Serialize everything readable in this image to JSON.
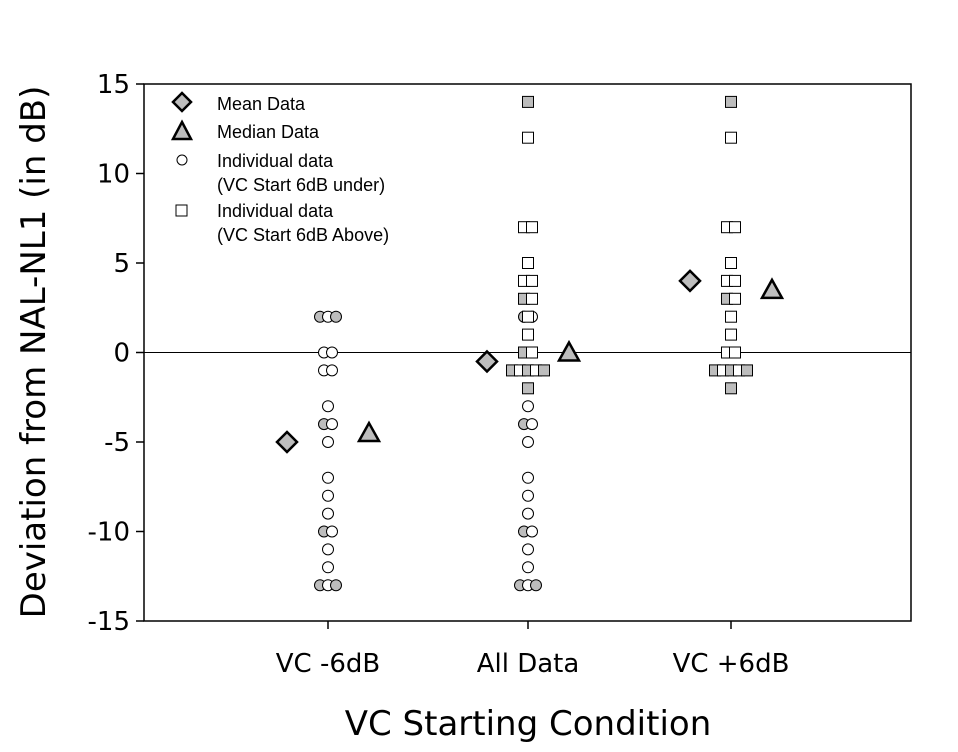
{
  "chart_data": {
    "type": "scatter",
    "xlabel": "VC Starting Condition",
    "ylabel": "Deviation from NAL-NL1 (in dB)",
    "categories": [
      "VC -6dB",
      "All Data",
      "VC +6dB"
    ],
    "ylim": [
      -15,
      15
    ],
    "yticks": [
      15,
      10,
      5,
      0,
      -5,
      -10,
      -15
    ],
    "reference_line": 0,
    "grid": false,
    "legend_position": "top-left",
    "legend": {
      "mean": "Mean Data",
      "median": "Median Data",
      "under_line1": "Individual data",
      "under_line2": "(VC Start 6dB under)",
      "above_line1": "Individual data",
      "above_line2": "(VC Start 6dB Above)"
    },
    "series": [
      {
        "name": "Mean Data",
        "marker": "diamond",
        "fill": "#bdbdbd",
        "points": [
          {
            "category": "VC -6dB",
            "y": -5
          },
          {
            "category": "All Data",
            "y": -0.5
          },
          {
            "category": "VC +6dB",
            "y": 4
          }
        ]
      },
      {
        "name": "Median Data",
        "marker": "triangle",
        "fill": "#bdbdbd",
        "points": [
          {
            "category": "VC -6dB",
            "y": -4.5
          },
          {
            "category": "All Data",
            "y": 0
          },
          {
            "category": "VC +6dB",
            "y": 3.5
          }
        ]
      },
      {
        "name": "Individual data (VC Start 6dB under)",
        "marker": "circle",
        "groups": [
          {
            "category": "VC -6dB",
            "rows": [
              {
                "y": 2,
                "n": 3,
                "filled": true
              },
              {
                "y": 0,
                "n": 2,
                "filled": false
              },
              {
                "y": -1,
                "n": 2,
                "filled": false
              },
              {
                "y": -3,
                "n": 1,
                "filled": false
              },
              {
                "y": -4,
                "n": 2,
                "filled": true
              },
              {
                "y": -5,
                "n": 1,
                "filled": false
              },
              {
                "y": -7,
                "n": 1,
                "filled": false
              },
              {
                "y": -8,
                "n": 1,
                "filled": false
              },
              {
                "y": -9,
                "n": 1,
                "filled": false
              },
              {
                "y": -10,
                "n": 2,
                "filled": true
              },
              {
                "y": -11,
                "n": 1,
                "filled": false
              },
              {
                "y": -12,
                "n": 1,
                "filled": false
              },
              {
                "y": -13,
                "n": 3,
                "filled": true
              }
            ]
          },
          {
            "category": "All Data",
            "rows": [
              {
                "y": 2,
                "n": 2,
                "filled": true
              },
              {
                "y": 0,
                "n": 2,
                "filled": false
              },
              {
                "y": -1,
                "n": 2,
                "filled": false
              },
              {
                "y": -3,
                "n": 1,
                "filled": false
              },
              {
                "y": -4,
                "n": 2,
                "filled": true
              },
              {
                "y": -5,
                "n": 1,
                "filled": false
              },
              {
                "y": -7,
                "n": 1,
                "filled": false
              },
              {
                "y": -8,
                "n": 1,
                "filled": false
              },
              {
                "y": -9,
                "n": 1,
                "filled": false
              },
              {
                "y": -10,
                "n": 2,
                "filled": true
              },
              {
                "y": -11,
                "n": 1,
                "filled": false
              },
              {
                "y": -12,
                "n": 1,
                "filled": false
              },
              {
                "y": -13,
                "n": 3,
                "filled": true
              }
            ]
          }
        ]
      },
      {
        "name": "Individual data (VC Start 6dB Above)",
        "marker": "square",
        "groups": [
          {
            "category": "All Data",
            "rows": [
              {
                "y": 14,
                "n": 1,
                "filled": true
              },
              {
                "y": 12,
                "n": 1,
                "filled": false
              },
              {
                "y": 7,
                "n": 2,
                "filled": false
              },
              {
                "y": 5,
                "n": 1,
                "filled": false
              },
              {
                "y": 4,
                "n": 2,
                "filled": false
              },
              {
                "y": 3,
                "n": 2,
                "filled": true
              },
              {
                "y": 2,
                "n": 1,
                "filled": false
              },
              {
                "y": 1,
                "n": 1,
                "filled": false
              },
              {
                "y": 0,
                "n": 2,
                "filled": true
              },
              {
                "y": -1,
                "n": 5,
                "filled": true
              },
              {
                "y": -2,
                "n": 1,
                "filled": true
              }
            ]
          },
          {
            "category": "VC +6dB",
            "rows": [
              {
                "y": 14,
                "n": 1,
                "filled": true
              },
              {
                "y": 12,
                "n": 1,
                "filled": false
              },
              {
                "y": 7,
                "n": 2,
                "filled": false
              },
              {
                "y": 5,
                "n": 1,
                "filled": false
              },
              {
                "y": 4,
                "n": 2,
                "filled": false
              },
              {
                "y": 3,
                "n": 2,
                "filled": true
              },
              {
                "y": 2,
                "n": 1,
                "filled": false
              },
              {
                "y": 1,
                "n": 1,
                "filled": false
              },
              {
                "y": 0,
                "n": 2,
                "filled": false
              },
              {
                "y": -1,
                "n": 5,
                "filled": true
              },
              {
                "y": -2,
                "n": 1,
                "filled": true
              }
            ]
          }
        ]
      }
    ]
  }
}
